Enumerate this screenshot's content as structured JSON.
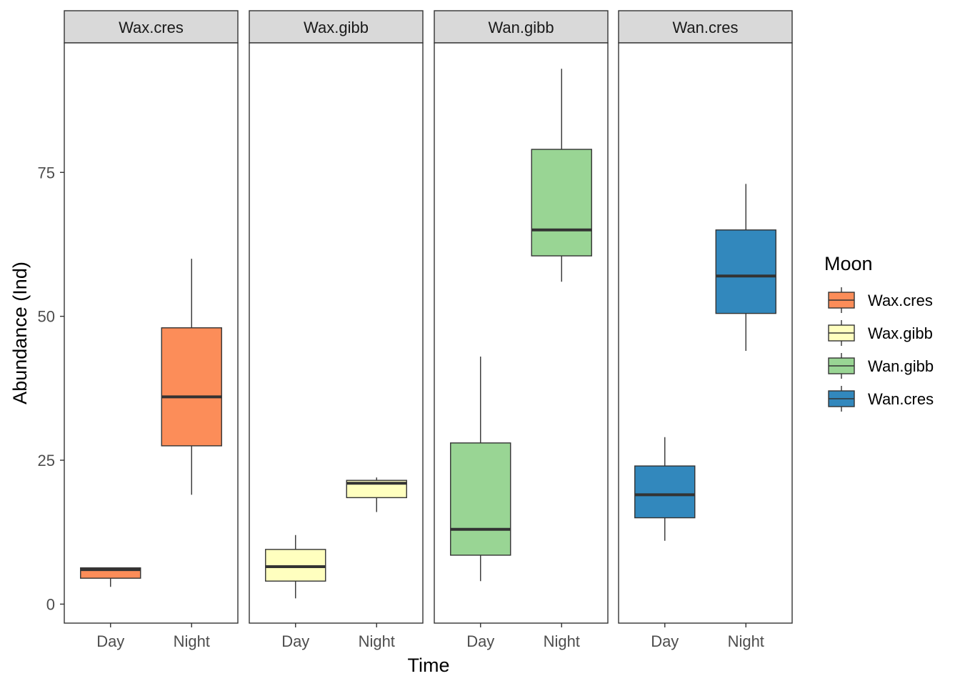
{
  "chart_data": {
    "type": "boxplot",
    "title": "",
    "xlabel": "Time",
    "ylabel": "Abundance (Ind)",
    "categories": [
      "Day",
      "Night"
    ],
    "ylim": [
      -3.3,
      97.5
    ],
    "yticks": [
      0,
      25,
      50,
      75
    ],
    "grid": false,
    "legend": {
      "title": "Moon",
      "position": "right"
    },
    "facets": [
      {
        "name": "Wax.cres",
        "color": "#fc8d59",
        "boxes": [
          {
            "category": "Day",
            "min": 3,
            "q1": 4.5,
            "median": 6,
            "q3": 6.3,
            "max": 6.3
          },
          {
            "category": "Night",
            "min": 19,
            "q1": 27.5,
            "median": 36,
            "q3": 48,
            "max": 60
          }
        ]
      },
      {
        "name": "Wax.gibb",
        "color": "#ffffbf",
        "boxes": [
          {
            "category": "Day",
            "min": 1,
            "q1": 4,
            "median": 6.5,
            "q3": 9.5,
            "max": 12
          },
          {
            "category": "Night",
            "min": 16,
            "q1": 18.5,
            "median": 21,
            "q3": 21.5,
            "max": 22
          }
        ]
      },
      {
        "name": "Wan.gibb",
        "color": "#99d594",
        "boxes": [
          {
            "category": "Day",
            "min": 4,
            "q1": 8.5,
            "median": 13,
            "q3": 28,
            "max": 43
          },
          {
            "category": "Night",
            "min": 56,
            "q1": 60.5,
            "median": 65,
            "q3": 79,
            "max": 93
          }
        ]
      },
      {
        "name": "Wan.cres",
        "color": "#3288bd",
        "boxes": [
          {
            "category": "Day",
            "min": 11,
            "q1": 15,
            "median": 19,
            "q3": 24,
            "max": 29
          },
          {
            "category": "Night",
            "min": 44,
            "q1": 50.5,
            "median": 57,
            "q3": 65,
            "max": 73
          }
        ]
      }
    ]
  }
}
